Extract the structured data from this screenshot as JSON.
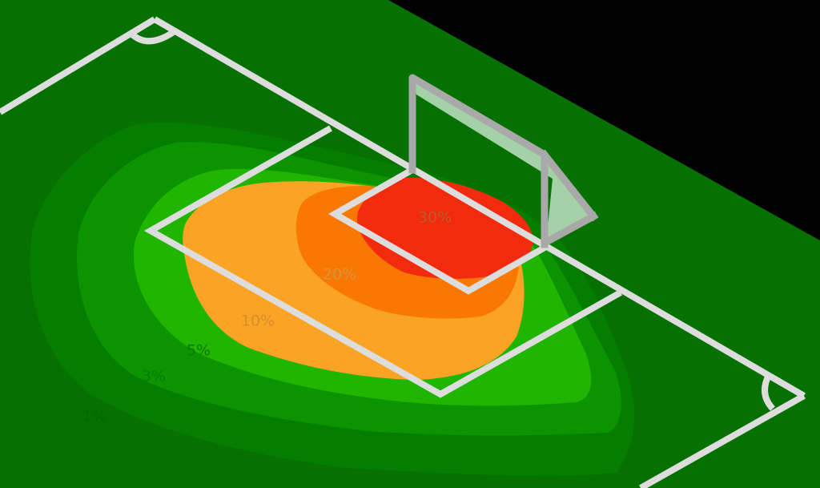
{
  "zones": [
    {
      "id": "zone-30",
      "label": "30%",
      "value": 30,
      "color": "#f22a0e"
    },
    {
      "id": "zone-20",
      "label": "20%",
      "value": 20,
      "color": "#f97703"
    },
    {
      "id": "zone-10",
      "label": "10%",
      "value": 10,
      "color": "#fba324"
    },
    {
      "id": "zone-5",
      "label": "5%",
      "value": 5,
      "color": "#1fb500"
    },
    {
      "id": "zone-3",
      "label": "3%",
      "value": 3,
      "color": "#0c9400"
    },
    {
      "id": "zone-1",
      "label": "1%",
      "value": 1,
      "color": "#047d00"
    }
  ],
  "colors": {
    "background": "#000000",
    "pitch": "#067000",
    "lines": "#dddddd",
    "goal_frame": "#a9a9a9",
    "goal_net": "#b7dcbb"
  }
}
